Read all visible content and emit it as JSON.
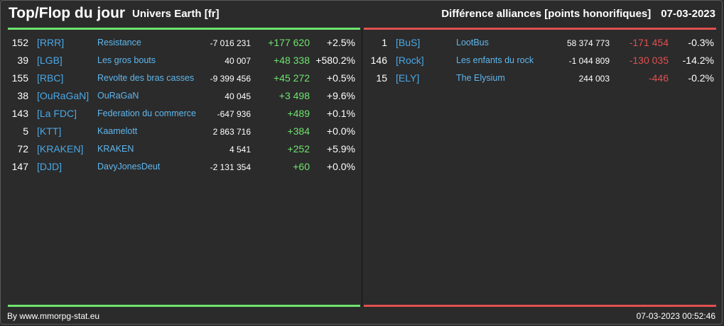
{
  "header": {
    "title": "Top/Flop du jour",
    "server": "Univers Earth [fr]",
    "metric": "Différence alliances [points honorifiques]",
    "date": "07-03-2023"
  },
  "top": [
    {
      "rank": "152",
      "tag": "[RRR]",
      "name": "Resistance",
      "value": "-7 016 231",
      "diff": "+177 620",
      "pct": "+2.5%"
    },
    {
      "rank": "39",
      "tag": "[LGB]",
      "name": "Les gros bouts",
      "value": "40 007",
      "diff": "+48 338",
      "pct": "+580.2%"
    },
    {
      "rank": "155",
      "tag": "[RBC]",
      "name": "Revolte des bras casses",
      "value": "-9 399 456",
      "diff": "+45 272",
      "pct": "+0.5%"
    },
    {
      "rank": "38",
      "tag": "[OuRaGaN]",
      "name": "OuRaGaN",
      "value": "40 045",
      "diff": "+3 498",
      "pct": "+9.6%"
    },
    {
      "rank": "143",
      "tag": "[La FDC]",
      "name": "Federation du commerce",
      "value": "-647 936",
      "diff": "+489",
      "pct": "+0.1%"
    },
    {
      "rank": "5",
      "tag": "[KTT]",
      "name": "Kaamelott",
      "value": "2 863 716",
      "diff": "+384",
      "pct": "+0.0%"
    },
    {
      "rank": "72",
      "tag": "[KRAKEN]",
      "name": "KRAKEN",
      "value": "4 541",
      "diff": "+252",
      "pct": "+5.9%"
    },
    {
      "rank": "147",
      "tag": "[DJD]",
      "name": "DavyJonesDeut",
      "value": "-2 131 354",
      "diff": "+60",
      "pct": "+0.0%"
    }
  ],
  "flop": [
    {
      "rank": "1",
      "tag": "[BuS]",
      "name": "LootBus",
      "value": "58 374 773",
      "diff": "-171 454",
      "pct": "-0.3%"
    },
    {
      "rank": "146",
      "tag": "[Rock]",
      "name": "Les enfants du rock",
      "value": "-1 044 809",
      "diff": "-130 035",
      "pct": "-14.2%"
    },
    {
      "rank": "15",
      "tag": "[ELY]",
      "name": "The Elysium",
      "value": "244 003",
      "diff": "-446",
      "pct": "-0.2%"
    }
  ],
  "footer": {
    "credit": "By www.mmorpg-stat.eu",
    "timestamp": "07-03-2023 00:52:46"
  },
  "colors": {
    "background": "#2b2b2b",
    "positive": "#6fe36f",
    "negative": "#e05050",
    "link": "#4aa8e6"
  }
}
